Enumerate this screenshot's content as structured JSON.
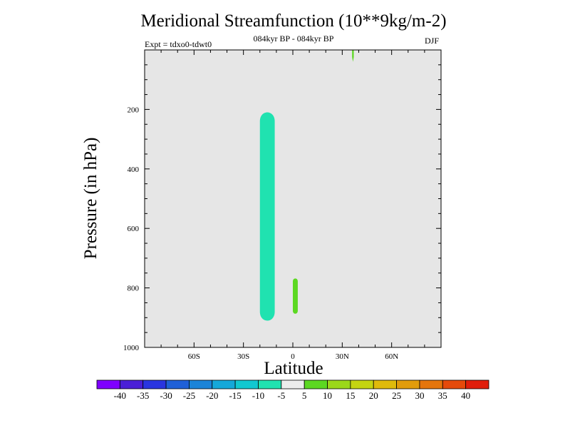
{
  "chart_data": {
    "type": "heatmap",
    "title": "Meridional Streamfunction (10**9kg/m-2)",
    "subtitle": "084kyr BP - 084kyr BP",
    "expt_label": "Expt = tdxo0-tdwt0",
    "season": "DJF",
    "xlabel": "Latitude",
    "ylabel": "Pressure (in hPa)",
    "x_ticks": [
      {
        "value": -60,
        "label": "60S"
      },
      {
        "value": -30,
        "label": "30S"
      },
      {
        "value": 0,
        "label": "0"
      },
      {
        "value": 30,
        "label": "30N"
      },
      {
        "value": 60,
        "label": "60N"
      }
    ],
    "y_ticks": [
      {
        "value": 200,
        "label": "200"
      },
      {
        "value": 400,
        "label": "400"
      },
      {
        "value": 600,
        "label": "600"
      },
      {
        "value": 800,
        "label": "800"
      },
      {
        "value": 1000,
        "label": "1000"
      }
    ],
    "xlim": [
      -90,
      90
    ],
    "ylim": [
      1000,
      0
    ],
    "background_color": "#e6e6e6",
    "colorbar": {
      "labels": [
        "-40",
        "-35",
        "-30",
        "-25",
        "-20",
        "-15",
        "-10",
        "-5",
        "5",
        "10",
        "15",
        "20",
        "25",
        "30",
        "35",
        "40"
      ],
      "colors": [
        "#7f00ff",
        "#4a1fd6",
        "#2a35e0",
        "#1f60d8",
        "#1b84d8",
        "#15a8d9",
        "#12c8d0",
        "#20e2b0",
        "#ececec",
        "#5cd822",
        "#9bd81a",
        "#c4d411",
        "#dfba0b",
        "#e19c0b",
        "#e5750c",
        "#e54a0b",
        "#e01e0b"
      ]
    },
    "regions": [
      {
        "name": "negative-cell",
        "value_range": [
          -10,
          -5
        ],
        "color": "#20e2b0",
        "lat_range": [
          -20,
          -11
        ],
        "pressure_range": [
          200,
          920
        ]
      },
      {
        "name": "positive-cell-lower",
        "value_range": [
          5,
          10
        ],
        "color": "#5cd822",
        "lat_range": [
          0,
          3
        ],
        "pressure_range": [
          765,
          890
        ]
      },
      {
        "name": "positive-cell-upper",
        "value_range": [
          5,
          10
        ],
        "color": "#5cd822",
        "lat_range": [
          36,
          37
        ],
        "pressure_range": [
          0,
          40
        ]
      }
    ]
  }
}
